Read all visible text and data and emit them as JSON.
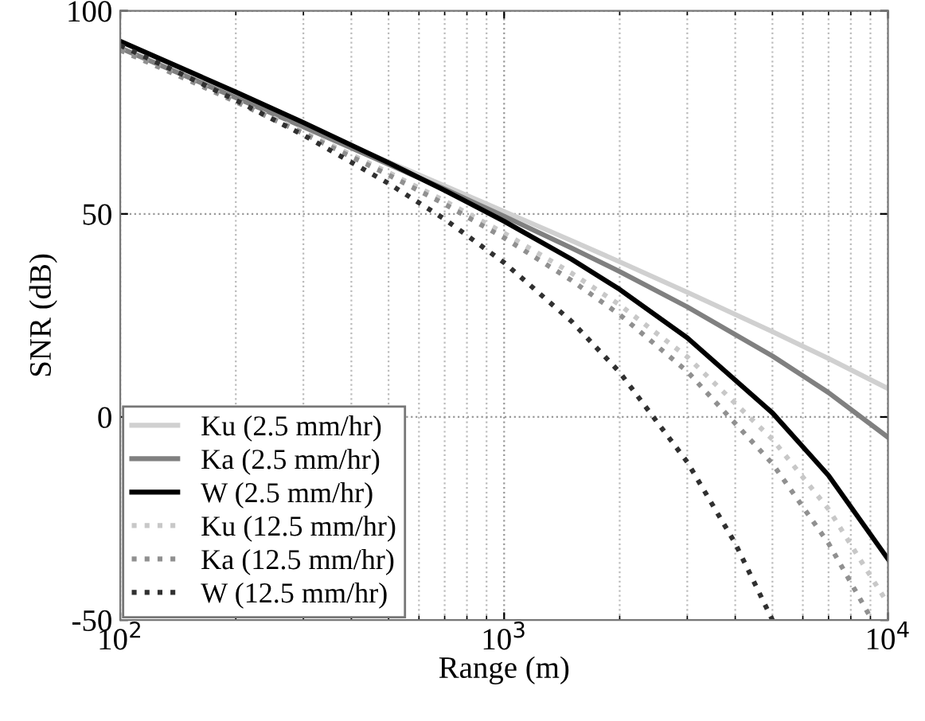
{
  "chart_data": {
    "type": "line",
    "xlabel": "Range (m)",
    "ylabel": "SNR (dB)",
    "log": "x",
    "xlim": [
      100,
      10000
    ],
    "ylim": [
      -50,
      100
    ],
    "xticks": [
      {
        "value": 100,
        "label": "10$^{2}$"
      },
      {
        "value": 1000,
        "label": "10$^{3}$"
      },
      {
        "value": 10000,
        "label": "10$^{4}$"
      }
    ],
    "yticks": [
      -50,
      0,
      50,
      100
    ],
    "grid": true,
    "legend": "bottom left",
    "x": [
      100,
      150,
      200,
      300,
      500,
      700,
      1000,
      1500,
      2000,
      3000,
      5000,
      7000,
      10000
    ],
    "series": [
      {
        "name": "Ku (2.5 mm/hr)",
        "color": "#d0d0d0",
        "line_style": "solid",
        "values": [
          91.0,
          83.9,
          78.9,
          71.8,
          62.8,
          56.9,
          50.6,
          43.4,
          38.2,
          30.7,
          21.0,
          14.4,
          7.0
        ]
      },
      {
        "name": "Ka (2.5 mm/hr)",
        "color": "#808080",
        "line_style": "solid",
        "values": [
          90.8,
          83.7,
          78.6,
          71.4,
          62.2,
          56.1,
          49.4,
          41.6,
          35.8,
          27.1,
          15.0,
          6.0,
          -5.0
        ]
      },
      {
        "name": "W (2.5 mm/hr)",
        "color": "#000000",
        "line_style": "solid",
        "values": [
          92.5,
          85.2,
          80.0,
          72.5,
          62.6,
          55.8,
          48.2,
          38.8,
          31.4,
          19.5,
          1.0,
          -14.4,
          -35.0
        ]
      },
      {
        "name": "Ku (12.5 mm/hr)",
        "color": "#c8c8c8",
        "line_style": "dotted",
        "values": [
          90.4,
          83.1,
          77.8,
          70.2,
          60.2,
          53.2,
          45.3,
          35.4,
          27.6,
          14.8,
          -5.5,
          -22.7,
          -46.0
        ]
      },
      {
        "name": "Ka (12.5 mm/hr)",
        "color": "#909090",
        "line_style": "dotted",
        "x": [
          100,
          150,
          200,
          300,
          500,
          700,
          1000,
          1500,
          2000,
          3000,
          5000,
          7000,
          9000
        ],
        "values": [
          90.3,
          83.0,
          77.6,
          69.8,
          59.6,
          52.4,
          44.1,
          33.6,
          25.2,
          11.2,
          -11.5,
          -31.1,
          -49.3
        ]
      },
      {
        "name": "W (12.5 mm/hr)",
        "color": "#303030",
        "line_style": "dotted",
        "x": [
          100,
          150,
          200,
          300,
          500,
          700,
          1000,
          1500,
          2000,
          3000,
          4000,
          5000
        ],
        "values": [
          91.5,
          83.7,
          78.0,
          69.4,
          57.5,
          48.7,
          38.0,
          23.5,
          11.0,
          -11.1,
          -31.1,
          -50.0
        ]
      }
    ]
  }
}
